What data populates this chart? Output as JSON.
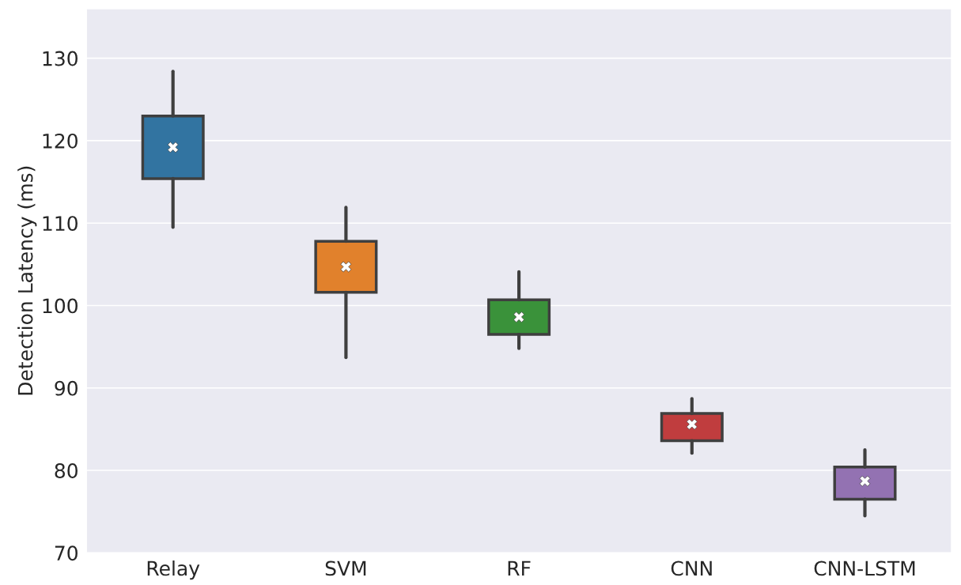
{
  "chart_data": {
    "type": "box",
    "ylabel": "Detection Latency (ms)",
    "categories": [
      "Relay",
      "SVM",
      "RF",
      "CNN",
      "CNN-LSTM"
    ],
    "colors": [
      "#3274a1",
      "#e1812c",
      "#3a923a",
      "#c03d3e",
      "#9372b2"
    ],
    "boxes": [
      {
        "low": 109.5,
        "q1": 115.4,
        "median": 119.2,
        "q3": 123.0,
        "high": 128.4
      },
      {
        "low": 93.7,
        "q1": 101.6,
        "median": 104.7,
        "q3": 107.8,
        "high": 111.9
      },
      {
        "low": 94.8,
        "q1": 96.5,
        "median": 98.6,
        "q3": 100.7,
        "high": 104.1
      },
      {
        "low": 82.1,
        "q1": 83.6,
        "median": 85.6,
        "q3": 86.9,
        "high": 88.7
      },
      {
        "low": 74.5,
        "q1": 76.5,
        "median": 78.7,
        "q3": 80.4,
        "high": 82.5
      }
    ],
    "ylim": [
      70,
      136
    ],
    "yticks": [
      70,
      80,
      90,
      100,
      110,
      120,
      130
    ],
    "grid": "y"
  }
}
